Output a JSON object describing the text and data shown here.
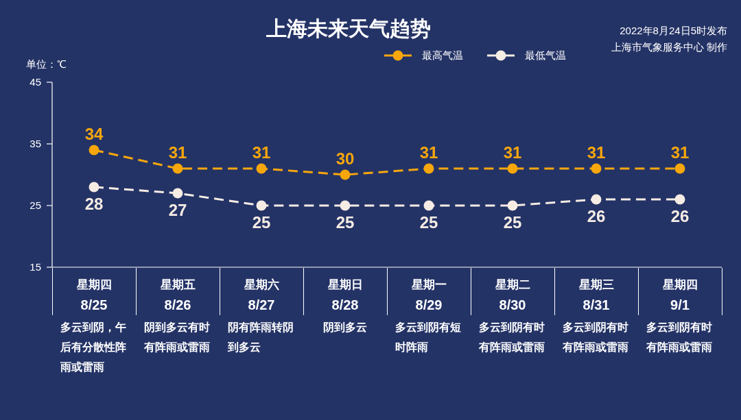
{
  "chart_data": {
    "type": "line",
    "title": "上海未来天气趋势",
    "ylabel": "单位：℃",
    "categories": [
      "星期四 8/25",
      "星期五 8/26",
      "星期六 8/27",
      "星期日 8/28",
      "星期一 8/29",
      "星期二 8/30",
      "星期三 8/31",
      "星期四 9/1"
    ],
    "series": [
      {
        "name": "最高气温",
        "color": "#f7a70c",
        "values": [
          34,
          31,
          31,
          30,
          31,
          31,
          31,
          31
        ]
      },
      {
        "name": "最低气温",
        "color": "#f5ece4",
        "values": [
          28,
          27,
          25,
          25,
          25,
          25,
          26,
          26
        ]
      }
    ],
    "ylim": [
      15,
      45
    ],
    "yticks": [
      15,
      25,
      35,
      45
    ],
    "data_labels": true,
    "marker": "circle",
    "line_style": "dashed",
    "legend": "top",
    "annotations": [
      "2022年8月24日5时发布",
      "上海市气象服务中心 制作",
      "多云到阴，午后有分散性阵雨或雷雨",
      "阴到多云有时有阵雨或雷雨",
      "阴有阵雨转阴到多云",
      "阴到多云",
      "多云到阴有短时阵雨",
      "多云到阴有时有阵雨或雷雨",
      "多云到阴有时有阵雨或雷雨",
      "多云到阴有时有阵雨或雷雨"
    ]
  }
}
